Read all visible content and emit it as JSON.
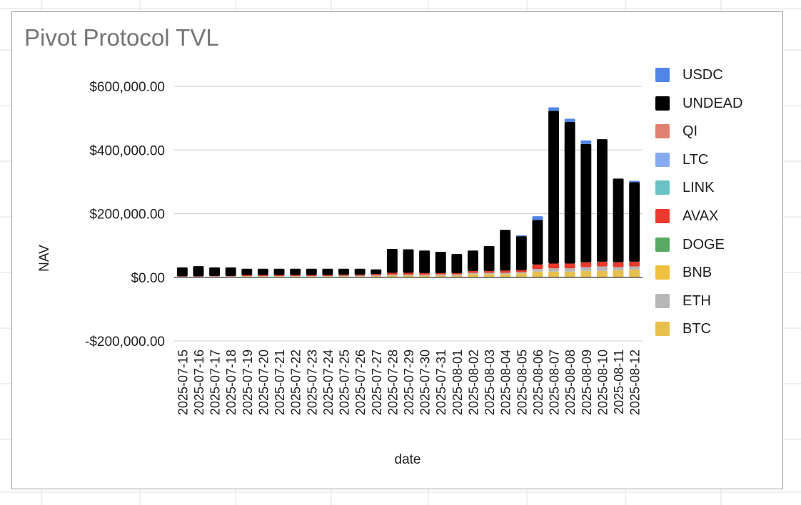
{
  "chart_data": {
    "type": "bar",
    "stacked": true,
    "title": "Pivot Protocol TVL",
    "xlabel": "date",
    "ylabel": "NAV",
    "ylim": [
      -200000,
      600000
    ],
    "yticks": [
      -200000,
      0,
      200000,
      400000,
      600000
    ],
    "ytick_labels": [
      "-$200,000.00",
      "$0.00",
      "$200,000.00",
      "$400,000.00",
      "$600,000.00"
    ],
    "grid": true,
    "legend_position": "right",
    "categories": [
      "2025-07-15",
      "2025-07-16",
      "2025-07-17",
      "2025-07-18",
      "2025-07-19",
      "2025-07-20",
      "2025-07-21",
      "2025-07-22",
      "2025-07-23",
      "2025-07-24",
      "2025-07-25",
      "2025-07-26",
      "2025-07-27",
      "2025-07-28",
      "2025-07-29",
      "2025-07-30",
      "2025-07-31",
      "2025-08-01",
      "2025-08-02",
      "2025-08-03",
      "2025-08-04",
      "2025-08-05",
      "2025-08-06",
      "2025-08-07",
      "2025-08-08",
      "2025-08-09",
      "2025-08-10",
      "2025-08-11",
      "2025-08-12"
    ],
    "series": [
      {
        "name": "BTC",
        "color": "#e8c04e",
        "values": [
          1000,
          1000,
          2000,
          2000,
          3000,
          3000,
          3000,
          3000,
          3000,
          3000,
          3000,
          3000,
          4000,
          5000,
          5000,
          5000,
          5000,
          5000,
          10000,
          10000,
          10000,
          12000,
          18000,
          18000,
          18000,
          20000,
          20000,
          22000,
          24000
        ]
      },
      {
        "name": "ETH",
        "color": "#b7b7b7",
        "values": [
          1000,
          1000,
          1000,
          1000,
          1000,
          1000,
          1000,
          1000,
          1000,
          1000,
          2000,
          2000,
          2000,
          3000,
          3000,
          3000,
          4000,
          4000,
          4000,
          4000,
          4000,
          4000,
          8000,
          10000,
          10000,
          12000,
          14000,
          10000,
          10000
        ]
      },
      {
        "name": "BNB",
        "color": "#f0c040",
        "values": [
          0,
          0,
          0,
          0,
          0,
          0,
          0,
          0,
          0,
          0,
          0,
          0,
          0,
          0,
          0,
          0,
          0,
          0,
          0,
          0,
          0,
          0,
          0,
          0,
          0,
          0,
          0,
          0,
          0
        ]
      },
      {
        "name": "DOGE",
        "color": "#57a964",
        "values": [
          0,
          0,
          0,
          0,
          0,
          0,
          0,
          0,
          0,
          0,
          0,
          0,
          0,
          0,
          0,
          0,
          0,
          0,
          0,
          0,
          0,
          0,
          0,
          0,
          0,
          0,
          0,
          0,
          0
        ]
      },
      {
        "name": "AVAX",
        "color": "#ea3a2d",
        "values": [
          1000,
          1000,
          1000,
          1000,
          3000,
          3000,
          3000,
          3000,
          3000,
          3000,
          3000,
          3000,
          4000,
          6000,
          6000,
          5000,
          4000,
          4000,
          6000,
          6000,
          7000,
          6000,
          14000,
          15000,
          15000,
          15000,
          15000,
          15000,
          15000
        ]
      },
      {
        "name": "LINK",
        "color": "#6bc2c4",
        "values": [
          0,
          0,
          0,
          0,
          0,
          0,
          0,
          0,
          0,
          0,
          0,
          0,
          0,
          0,
          0,
          0,
          0,
          0,
          0,
          0,
          0,
          0,
          0,
          0,
          0,
          0,
          0,
          0,
          0
        ]
      },
      {
        "name": "LTC",
        "color": "#88aaf0",
        "values": [
          0,
          0,
          0,
          0,
          0,
          0,
          0,
          0,
          0,
          0,
          0,
          0,
          0,
          0,
          0,
          0,
          0,
          0,
          0,
          0,
          0,
          0,
          0,
          0,
          0,
          0,
          0,
          0,
          0
        ]
      },
      {
        "name": "QI",
        "color": "#e08070",
        "values": [
          0,
          0,
          0,
          0,
          0,
          0,
          0,
          0,
          0,
          0,
          0,
          0,
          0,
          0,
          0,
          0,
          0,
          0,
          0,
          0,
          0,
          0,
          0,
          0,
          0,
          0,
          0,
          0,
          0
        ]
      },
      {
        "name": "UNDEAD",
        "color": "#000000",
        "values": [
          28000,
          32000,
          27000,
          27000,
          20000,
          20000,
          20000,
          20000,
          20000,
          20000,
          19000,
          19000,
          15000,
          75000,
          74000,
          71000,
          67000,
          60000,
          64000,
          78000,
          128000,
          107000,
          140000,
          480000,
          445000,
          372000,
          385000,
          263000,
          250000
        ]
      },
      {
        "name": "USDC",
        "color": "#4f86e8",
        "values": [
          0,
          0,
          0,
          0,
          0,
          0,
          0,
          0,
          0,
          0,
          0,
          0,
          0,
          0,
          0,
          0,
          0,
          0,
          0,
          0,
          0,
          3000,
          12000,
          11000,
          10000,
          11000,
          0,
          0,
          4000
        ]
      }
    ]
  }
}
